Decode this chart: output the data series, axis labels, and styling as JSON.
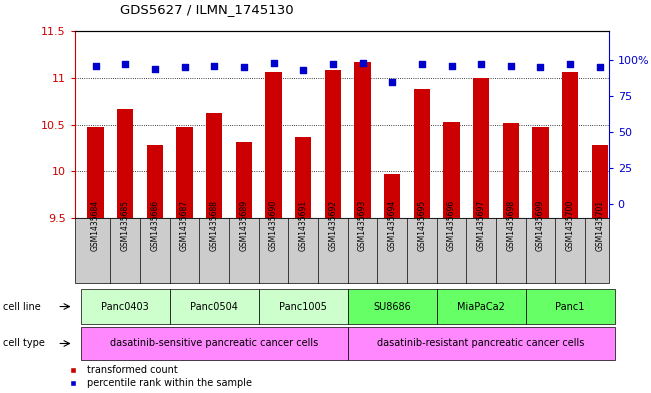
{
  "title": "GDS5627 / ILMN_1745130",
  "samples": [
    "GSM1435684",
    "GSM1435685",
    "GSM1435686",
    "GSM1435687",
    "GSM1435688",
    "GSM1435689",
    "GSM1435690",
    "GSM1435691",
    "GSM1435692",
    "GSM1435693",
    "GSM1435694",
    "GSM1435695",
    "GSM1435696",
    "GSM1435697",
    "GSM1435698",
    "GSM1435699",
    "GSM1435700",
    "GSM1435701"
  ],
  "bar_values": [
    10.48,
    10.67,
    10.28,
    10.48,
    10.63,
    10.32,
    11.07,
    10.37,
    11.09,
    11.17,
    9.97,
    10.88,
    10.53,
    11.0,
    10.52,
    10.48,
    11.07,
    10.28
  ],
  "percentile_values": [
    96,
    97,
    94,
    95,
    96,
    95,
    98,
    93,
    97,
    98,
    85,
    97,
    96,
    97,
    96,
    95,
    97,
    95
  ],
  "ylim": [
    9.5,
    11.5
  ],
  "yticks_left": [
    9.5,
    10.0,
    10.5,
    11.0,
    11.5
  ],
  "yticks_right": [
    0,
    25,
    50,
    75,
    100
  ],
  "bar_color": "#cc0000",
  "dot_color": "#0000cc",
  "bar_width": 0.55,
  "cell_lines": [
    {
      "label": "Panc0403",
      "start": 0,
      "end": 2,
      "color": "#ccffcc"
    },
    {
      "label": "Panc0504",
      "start": 3,
      "end": 5,
      "color": "#ccffcc"
    },
    {
      "label": "Panc1005",
      "start": 6,
      "end": 8,
      "color": "#ccffcc"
    },
    {
      "label": "SU8686",
      "start": 9,
      "end": 11,
      "color": "#66ff66"
    },
    {
      "label": "MiaPaCa2",
      "start": 12,
      "end": 14,
      "color": "#66ff66"
    },
    {
      "label": "Panc1",
      "start": 15,
      "end": 17,
      "color": "#66ff66"
    }
  ],
  "cell_types": [
    {
      "label": "dasatinib-sensitive pancreatic cancer cells",
      "start": 0,
      "end": 8,
      "color": "#ff88ff"
    },
    {
      "label": "dasatinib-resistant pancreatic cancer cells",
      "start": 9,
      "end": 17,
      "color": "#ff88ff"
    }
  ],
  "legend_items": [
    {
      "label": "transformed count",
      "color": "#cc0000"
    },
    {
      "label": "percentile rank within the sample",
      "color": "#0000cc"
    }
  ],
  "left_axis_color": "#cc0000",
  "right_axis_color": "#0000cc",
  "xlim_min": -0.7,
  "xlim_max": 17.3
}
